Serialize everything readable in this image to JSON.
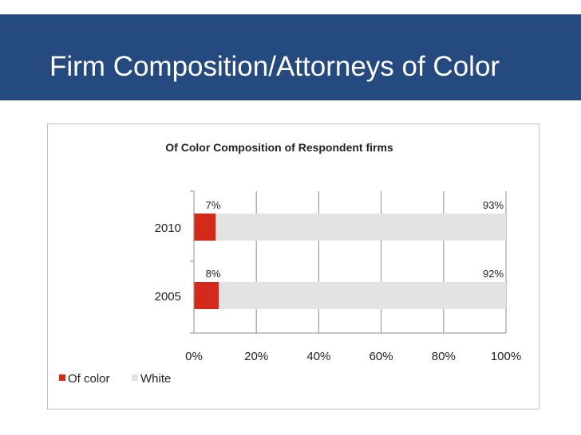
{
  "slide": {
    "title": "Firm Composition/Attorneys of Color",
    "banner_color": "#254a80"
  },
  "chart_data": {
    "type": "bar",
    "orientation": "horizontal",
    "stacked": true,
    "title": "Of Color Composition of Respondent firms",
    "categories": [
      "2010",
      "2005"
    ],
    "series": [
      {
        "name": "Of color",
        "values": [
          7,
          8
        ],
        "labels": [
          "7%",
          "8%"
        ],
        "color": "#d42a1c"
      },
      {
        "name": "White",
        "values": [
          93,
          92
        ],
        "labels": [
          "93%",
          "92%"
        ],
        "color": "#e3e3e3"
      }
    ],
    "xlim": [
      0,
      100
    ],
    "x_ticks": [
      "0%",
      "20%",
      "40%",
      "60%",
      "80%",
      "100%"
    ],
    "grid": true,
    "legend_position": "bottom-left"
  }
}
